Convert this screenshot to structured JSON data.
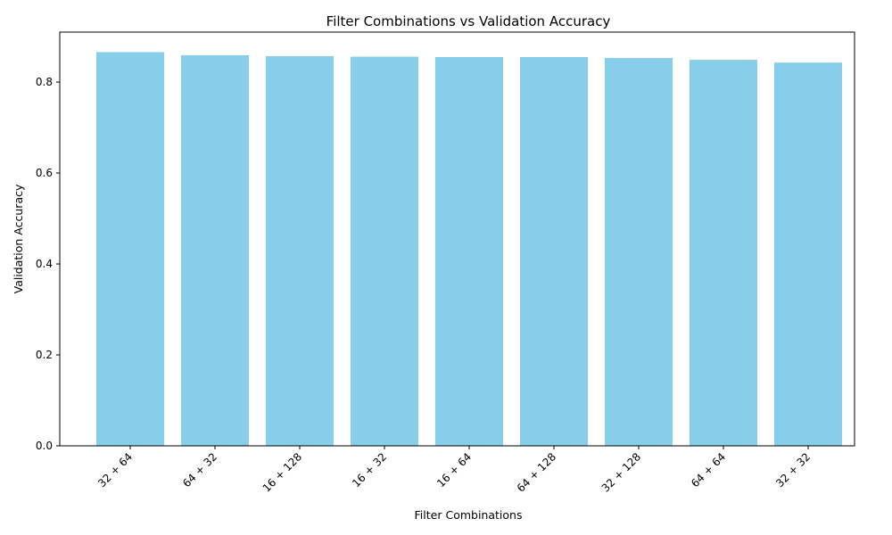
{
  "chart_data": {
    "type": "bar",
    "title": "Filter Combinations vs Validation Accuracy",
    "xlabel": "Filter Combinations",
    "ylabel": "Validation Accuracy",
    "categories": [
      "32 + 64",
      "64 + 32",
      "16 + 128",
      "16 + 32",
      "16 + 64",
      "64 + 128",
      "32 + 128",
      "64 + 64",
      "32 + 32"
    ],
    "values": [
      0.866,
      0.859,
      0.857,
      0.856,
      0.855,
      0.855,
      0.853,
      0.849,
      0.843
    ],
    "ylim": [
      0,
      0.91
    ],
    "yticks": [
      0.0,
      0.2,
      0.4,
      0.6,
      0.8
    ],
    "ytick_labels": [
      "0.0",
      "0.2",
      "0.4",
      "0.6",
      "0.8"
    ],
    "bar_color": "#87ceeb",
    "grid": false,
    "xtick_rotation": 45
  }
}
